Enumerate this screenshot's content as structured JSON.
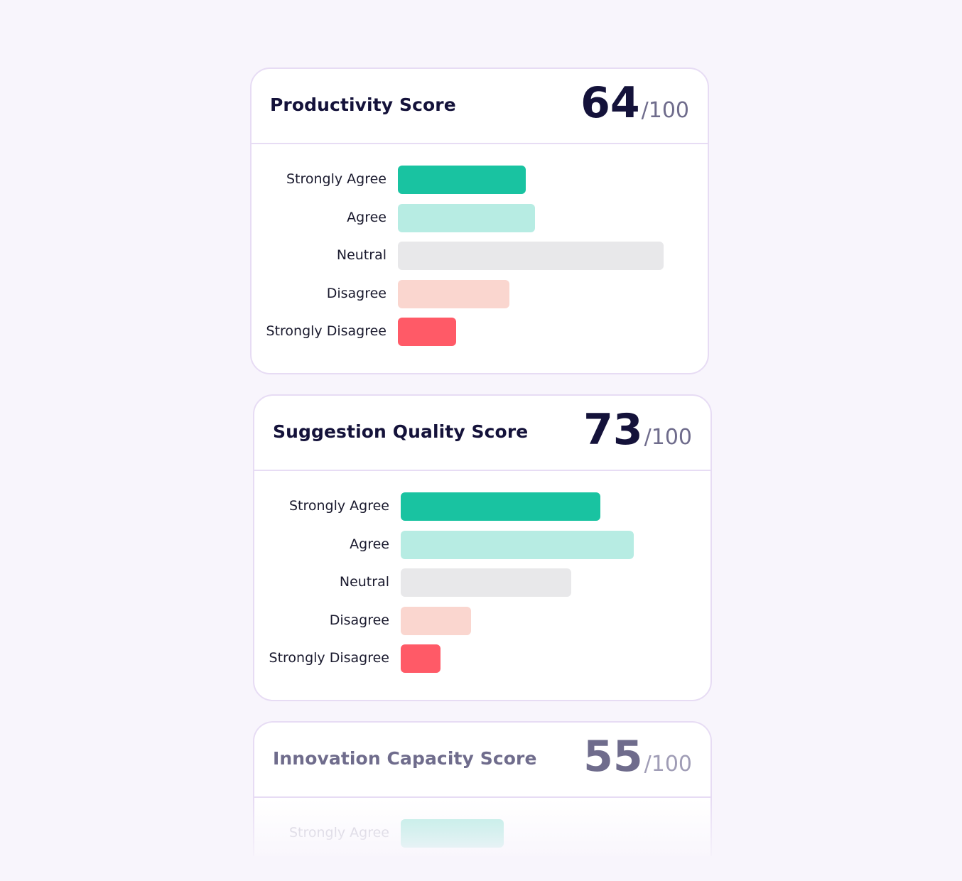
{
  "max_label": "/100",
  "chart_data": [
    {
      "type": "bar",
      "title": "Productivity Score",
      "score": "64",
      "categories": [
        "Strongly Agree",
        "Agree",
        "Neutral",
        "Disagree",
        "Strongly Disagree"
      ],
      "values": [
        180,
        193,
        374,
        157,
        82
      ],
      "colors": [
        "#19c3a1",
        "#b7ece3",
        "#e8e8ea",
        "#fad6cf",
        "#ff5a67"
      ]
    },
    {
      "type": "bar",
      "title": "Suggestion Quality Score",
      "score": "73",
      "categories": [
        "Strongly Agree",
        "Agree",
        "Neutral",
        "Disagree",
        "Strongly Disagree"
      ],
      "values": [
        281,
        328,
        240,
        99,
        56
      ],
      "colors": [
        "#19c3a1",
        "#b7ece3",
        "#e8e8ea",
        "#fad6cf",
        "#ff5a67"
      ]
    },
    {
      "type": "bar",
      "title": "Innovation Capacity Score",
      "score": "55",
      "categories": [
        "Strongly Agree"
      ],
      "values": [
        145
      ],
      "colors": [
        "#b7ece3"
      ]
    }
  ]
}
